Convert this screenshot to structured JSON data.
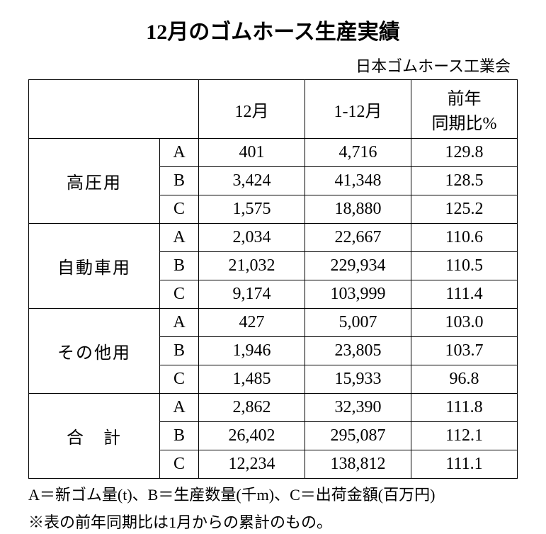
{
  "title": "12月のゴムホース生産実績",
  "subtitle": "日本ゴムホース工業会",
  "table": {
    "headers": {
      "col1": "12月",
      "col2": "1-12月",
      "col3": "前年\n同期比%"
    },
    "groups": [
      {
        "label": "高圧用",
        "rows": [
          {
            "sub": "A",
            "v1": "401",
            "v2": "4,716",
            "v3": "129.8"
          },
          {
            "sub": "B",
            "v1": "3,424",
            "v2": "41,348",
            "v3": "128.5"
          },
          {
            "sub": "C",
            "v1": "1,575",
            "v2": "18,880",
            "v3": "125.2"
          }
        ]
      },
      {
        "label": "自動車用",
        "rows": [
          {
            "sub": "A",
            "v1": "2,034",
            "v2": "22,667",
            "v3": "110.6"
          },
          {
            "sub": "B",
            "v1": "21,032",
            "v2": "229,934",
            "v3": "110.5"
          },
          {
            "sub": "C",
            "v1": "9,174",
            "v2": "103,999",
            "v3": "111.4"
          }
        ]
      },
      {
        "label": "その他用",
        "rows": [
          {
            "sub": "A",
            "v1": "427",
            "v2": "5,007",
            "v3": "103.0"
          },
          {
            "sub": "B",
            "v1": "1,946",
            "v2": "23,805",
            "v3": "103.7"
          },
          {
            "sub": "C",
            "v1": "1,485",
            "v2": "15,933",
            "v3": "96.8"
          }
        ]
      },
      {
        "label": "合　計",
        "rows": [
          {
            "sub": "A",
            "v1": "2,862",
            "v2": "32,390",
            "v3": "111.8"
          },
          {
            "sub": "B",
            "v1": "26,402",
            "v2": "295,087",
            "v3": "112.1"
          },
          {
            "sub": "C",
            "v1": "12,234",
            "v2": "138,812",
            "v3": "111.1"
          }
        ]
      }
    ]
  },
  "footnotes": {
    "line1": "A＝新ゴム量(t)、B＝生産数量(千m)、C＝出荷金額(百万円)",
    "line2": "※表の前年同期比は1月からの累計のもの。"
  },
  "style": {
    "background_color": "#ffffff",
    "text_color": "#000000",
    "border_color": "#000000",
    "title_fontsize": 30,
    "subtitle_fontsize": 22,
    "table_fontsize": 24,
    "footnote_fontsize": 22
  }
}
